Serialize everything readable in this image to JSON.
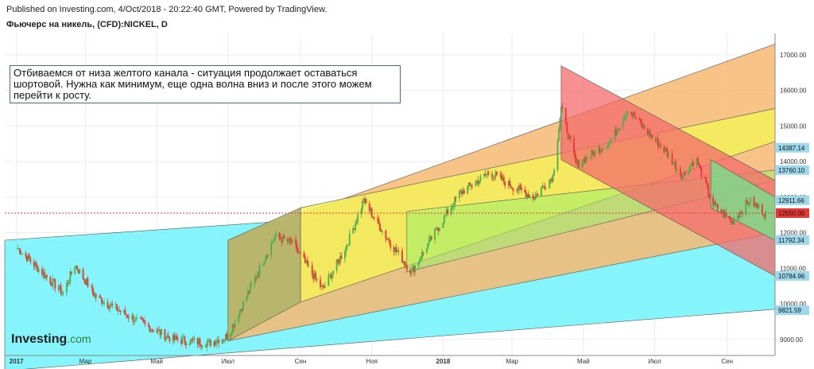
{
  "header": {
    "published": "Published on Investing.com, 4/Oct/2018 - 20:22:40 GMT, Powered by TradingView.",
    "title": "Фьючерс на никель, (CFD):NICKEL, D"
  },
  "note": "Отбиваемся от низа желтого канала - ситуация продолжает оставаться шортовой. Нужна как минимум, еще одна волна вниз и после этого можем перейти к росту.",
  "logo": {
    "name": "Investing",
    "domain": ".com"
  },
  "colors": {
    "bull": "#4caf50",
    "bear": "#e53935",
    "cyan": "#7ef4fb",
    "olive": "#b5b56a",
    "yellow": "#f3f05a",
    "orange": "#f7b872",
    "red": "#f46b6b",
    "green": "#7ed98a",
    "priceLine": "#e53935",
    "labelBg": "#9ed8ec"
  },
  "chart_data": {
    "type": "candlestick",
    "x_ticks": [
      "2017",
      "Мар",
      "Май",
      "Июл",
      "Сен",
      "Ноя",
      "2018",
      "Мар",
      "Май",
      "Июл",
      "Сен"
    ],
    "y_ticks": [
      9000,
      10000,
      11000,
      12000,
      13000,
      14000,
      15000,
      16000,
      17000
    ],
    "ylim": [
      8550,
      17600
    ],
    "grid": true,
    "current_price": 12550.0,
    "price_labels": [
      14387.14,
      13760.1,
      12911.66,
      12550.0,
      11792.34,
      10784.96,
      9821.59
    ],
    "series_keypoints": [
      {
        "date": "2017-01-01",
        "close": 11600
      },
      {
        "date": "2017-02-10",
        "close": 10300
      },
      {
        "date": "2017-02-20",
        "close": 11100
      },
      {
        "date": "2017-03-10",
        "close": 10200
      },
      {
        "date": "2017-04-10",
        "close": 9600
      },
      {
        "date": "2017-05-15",
        "close": 9000
      },
      {
        "date": "2017-06-15",
        "close": 8900
      },
      {
        "date": "2017-07-01",
        "close": 9100
      },
      {
        "date": "2017-08-10",
        "close": 11900
      },
      {
        "date": "2017-08-25",
        "close": 11700
      },
      {
        "date": "2017-09-20",
        "close": 10400
      },
      {
        "date": "2017-10-10",
        "close": 11600
      },
      {
        "date": "2017-10-25",
        "close": 12900
      },
      {
        "date": "2017-11-15",
        "close": 11800
      },
      {
        "date": "2017-12-05",
        "close": 10900
      },
      {
        "date": "2017-12-25",
        "close": 12000
      },
      {
        "date": "2018-01-15",
        "close": 13100
      },
      {
        "date": "2018-02-10",
        "close": 13700
      },
      {
        "date": "2018-03-01",
        "close": 13300
      },
      {
        "date": "2018-03-20",
        "close": 13000
      },
      {
        "date": "2018-04-05",
        "close": 13600
      },
      {
        "date": "2018-04-12",
        "close": 15500
      },
      {
        "date": "2018-04-25",
        "close": 13900
      },
      {
        "date": "2018-05-25",
        "close": 14600
      },
      {
        "date": "2018-06-08",
        "close": 15500
      },
      {
        "date": "2018-06-20",
        "close": 15000
      },
      {
        "date": "2018-07-10",
        "close": 14300
      },
      {
        "date": "2018-07-25",
        "close": 13600
      },
      {
        "date": "2018-08-05",
        "close": 14100
      },
      {
        "date": "2018-08-20",
        "close": 12800
      },
      {
        "date": "2018-09-05",
        "close": 12300
      },
      {
        "date": "2018-09-20",
        "close": 12900
      },
      {
        "date": "2018-10-04",
        "close": 12550
      }
    ],
    "channels": [
      {
        "name": "cyan"
      },
      {
        "name": "olive"
      },
      {
        "name": "yellow"
      },
      {
        "name": "orange"
      },
      {
        "name": "red"
      },
      {
        "name": "green"
      }
    ]
  }
}
